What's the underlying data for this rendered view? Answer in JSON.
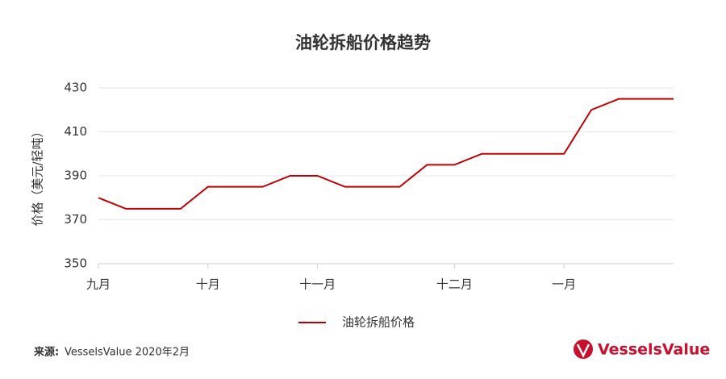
{
  "chart_data": {
    "type": "line",
    "title": "油轮拆船价格趋势",
    "y_label": "价格（美元/轻吨）",
    "categories": [
      "九月",
      null,
      null,
      null,
      "十月",
      null,
      null,
      null,
      "十一月",
      null,
      null,
      null,
      null,
      "十二月",
      null,
      null,
      null,
      "一月",
      null,
      null,
      null,
      null
    ],
    "series": [
      {
        "name": "油轮拆船价格",
        "color": "#c00000",
        "values": [
          380,
          375,
          375,
          375,
          385,
          385,
          385,
          390,
          390,
          385,
          385,
          385,
          395,
          395,
          400,
          400,
          400,
          400,
          420,
          425,
          425,
          425
        ]
      }
    ],
    "ylim": [
      350,
      430
    ],
    "yticks": [
      350,
      370,
      390,
      410,
      430
    ],
    "grid": true,
    "legend": "bottom",
    "source_label": "来源:",
    "source_text": "VesselsValue 2020年2月",
    "logo": "VesselsValue"
  }
}
